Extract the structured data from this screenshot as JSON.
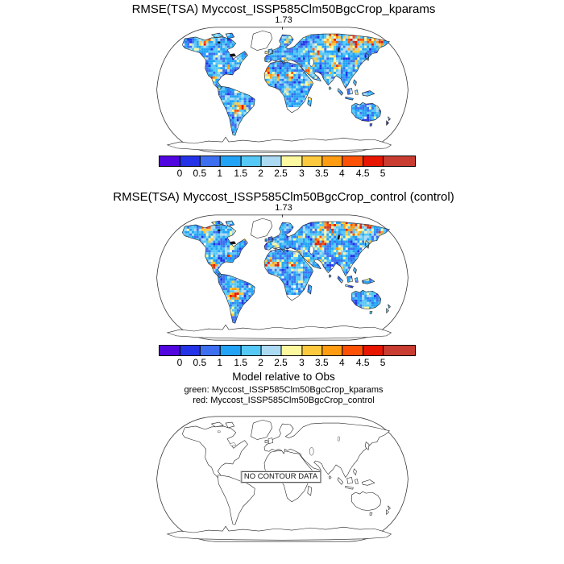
{
  "figure": {
    "panels": [
      {
        "title": "RMSE(TSA) Myccost_ISSP585Clm50BgcCrop_kparams",
        "stat": "1.73"
      },
      {
        "title": "RMSE(TSA) Myccost_ISSP585Clm50BgcCrop_control (control)",
        "stat": "1.73"
      },
      {
        "title": "Model relative to Obs",
        "legend_green": "green: Myccost_ISSP585Clm50BgcCrop_kparams",
        "legend_red": "red: Myccost_ISSP585Clm50BgcCrop_control",
        "no_data_label": "NO CONTOUR DATA"
      }
    ],
    "colorbar": {
      "tick_labels": [
        "0",
        "0.5",
        "1",
        "1.5",
        "2",
        "2.5",
        "3",
        "3.5",
        "4",
        "4.5",
        "5"
      ],
      "colors": [
        "#5106e0",
        "#2433e8",
        "#3d6ff0",
        "#22a3f5",
        "#55c8f5",
        "#abdaf2",
        "#fbf8a0",
        "#fdc93f",
        "#ff9c12",
        "#fd5205",
        "#e81500",
        "#c93c31"
      ]
    },
    "map_outline_color": "#333333",
    "coast_color": "#222222",
    "ocean_color": "#ffffff"
  },
  "chart_data": [
    {
      "type": "heatmap",
      "title": "RMSE(TSA) Myccost_ISSP585Clm50BgcCrop_kparams",
      "global_mean_value": 1.73,
      "metric": "RMSE",
      "variable": "TSA",
      "projection": "Robinson world map",
      "levels": [
        0,
        0.5,
        1,
        1.5,
        2,
        2.5,
        3,
        3.5,
        4,
        4.5,
        5
      ],
      "palette": [
        "#5106e0",
        "#2433e8",
        "#3d6ff0",
        "#22a3f5",
        "#55c8f5",
        "#abdaf2",
        "#fbf8a0",
        "#fdc93f",
        "#ff9c12",
        "#fd5205",
        "#e81500",
        "#c93c31"
      ],
      "legend_position": "bottom",
      "notes": "Land-only RMSE field, mostly 0.5-2 (blues) with scattered hotspots >4 (orange/red); Greenland and Antarctica have no data"
    },
    {
      "type": "heatmap",
      "title": "RMSE(TSA) Myccost_ISSP585Clm50BgcCrop_control (control)",
      "global_mean_value": 1.73,
      "metric": "RMSE",
      "variable": "TSA",
      "projection": "Robinson world map",
      "levels": [
        0,
        0.5,
        1,
        1.5,
        2,
        2.5,
        3,
        3.5,
        4,
        4.5,
        5
      ],
      "palette": [
        "#5106e0",
        "#2433e8",
        "#3d6ff0",
        "#22a3f5",
        "#55c8f5",
        "#abdaf2",
        "#fbf8a0",
        "#fdc93f",
        "#ff9c12",
        "#fd5205",
        "#e81500",
        "#c93c31"
      ],
      "legend_position": "bottom",
      "notes": "Nearly identical spatial pattern to kparams panel"
    },
    {
      "type": "heatmap",
      "title": "Model relative to Obs",
      "empty": true,
      "projection": "Robinson world map",
      "annotations": [
        "green: Myccost_ISSP585Clm50BgcCrop_kparams",
        "red: Myccost_ISSP585Clm50BgcCrop_control",
        "NO CONTOUR DATA"
      ]
    }
  ]
}
